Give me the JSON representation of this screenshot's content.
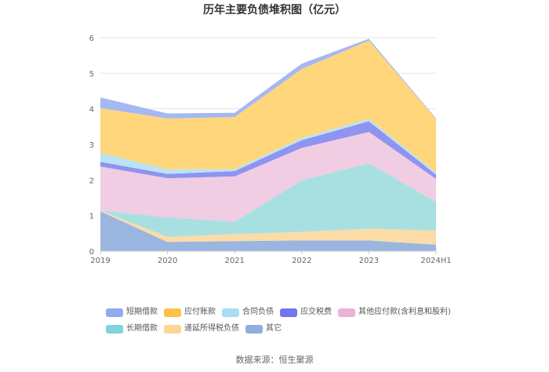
{
  "chart_data": {
    "type": "area",
    "stacked": true,
    "title": "历年主要负债堆积图（亿元）",
    "categories": [
      "2019",
      "2020",
      "2021",
      "2022",
      "2023",
      "2024H1"
    ],
    "ylim": [
      0,
      6
    ],
    "yticks": [
      0,
      1,
      2,
      3,
      4,
      5,
      6
    ],
    "grid": true,
    "legend_position": "bottom",
    "series": [
      {
        "name": "其它",
        "color": "#9ab6e0",
        "values": [
          1.12,
          0.26,
          0.28,
          0.3,
          0.3,
          0.18
        ]
      },
      {
        "name": "递延所得税负债",
        "color": "#fbdca6",
        "values": [
          0.02,
          0.14,
          0.2,
          0.24,
          0.33,
          0.4
        ]
      },
      {
        "name": "长期借款",
        "color": "#a8e0e2",
        "values": [
          0.0,
          0.55,
          0.35,
          1.45,
          1.84,
          0.8
        ]
      },
      {
        "name": "其他应付款(含利息和股利)",
        "color": "#f0cde2",
        "values": [
          1.24,
          1.1,
          1.27,
          0.91,
          0.88,
          0.65
        ]
      },
      {
        "name": "应交税费",
        "color": "#8e94f0",
        "values": [
          0.13,
          0.12,
          0.15,
          0.22,
          0.3,
          0.12
        ]
      },
      {
        "name": "合同负债",
        "color": "#b8e4f6",
        "values": [
          0.25,
          0.13,
          0.05,
          0.06,
          0.07,
          0.06
        ]
      },
      {
        "name": "应付账款",
        "color": "#ffd67c",
        "values": [
          1.26,
          1.43,
          1.47,
          1.94,
          2.2,
          1.5
        ]
      },
      {
        "name": "短期借款",
        "color": "#a4b8f2",
        "values": [
          0.3,
          0.14,
          0.12,
          0.15,
          0.05,
          0.02
        ]
      }
    ],
    "legend_rows": [
      [
        {
          "name": "短期借款",
          "color": "#93a9f2"
        },
        {
          "name": "应付账款",
          "color": "#fdc246"
        },
        {
          "name": "合同负债",
          "color": "#a7def5"
        },
        {
          "name": "应交税费",
          "color": "#7375ee"
        },
        {
          "name": "其他应付款(含利息和股利)",
          "color": "#eab4d8"
        }
      ],
      [
        {
          "name": "长期借款",
          "color": "#7fd5d7"
        },
        {
          "name": "递延所得税负债",
          "color": "#fdd596"
        },
        {
          "name": "其它",
          "color": "#8eaee0"
        }
      ]
    ]
  },
  "source": "数据来源：恒生聚源"
}
